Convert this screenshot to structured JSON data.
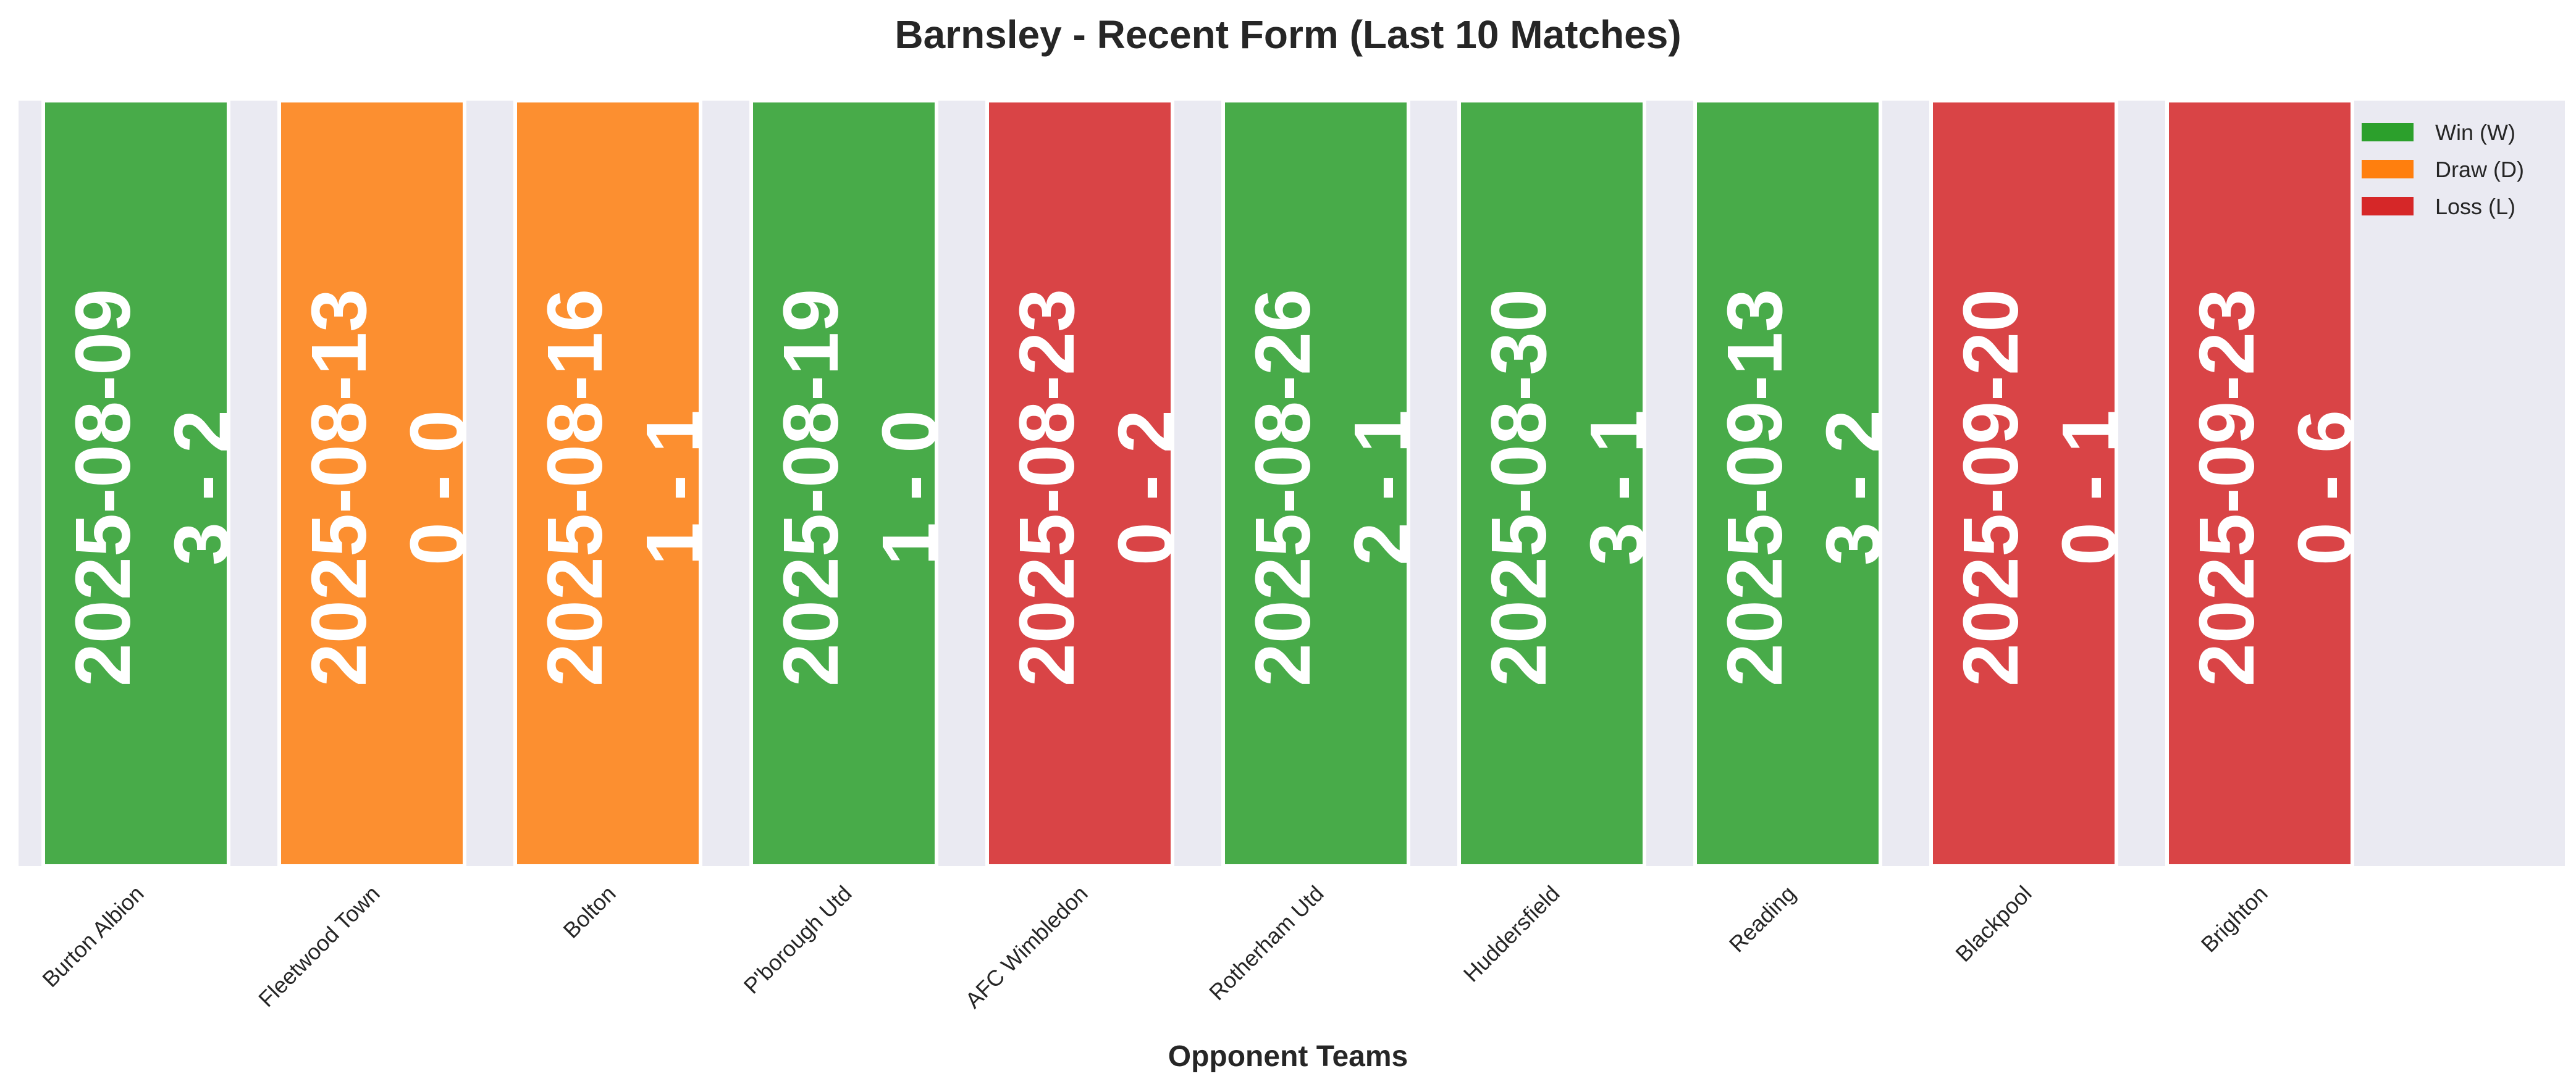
{
  "chart_data": {
    "type": "bar",
    "title": "Barnsley - Recent Form (Last 10 Matches)",
    "xlabel": "Opponent Teams",
    "ylabel": "",
    "ylim": [
      0,
      1
    ],
    "grid": false,
    "legend_position": "top-right",
    "categories": [
      "Burton Albion",
      "Fleetwood Town",
      "Bolton",
      "P'borough Utd",
      "AFC Wimbledon",
      "Rotherham Utd",
      "Huddersfield",
      "Reading",
      "Blackpool",
      "Brighton"
    ],
    "values": [
      1,
      1,
      1,
      1,
      1,
      1,
      1,
      1,
      1,
      1
    ],
    "dates": [
      "2025-08-09",
      "2025-08-13",
      "2025-08-16",
      "2025-08-19",
      "2025-08-23",
      "2025-08-26",
      "2025-08-30",
      "2025-09-13",
      "2025-09-20",
      "2025-09-23"
    ],
    "scores": [
      "3 - 2",
      "0 - 0",
      "1 - 1",
      "1 - 0",
      "0 - 2",
      "2 - 1",
      "3 - 1",
      "3 - 2",
      "0 - 1",
      "0 - 6"
    ],
    "results": [
      "W",
      "D",
      "D",
      "W",
      "L",
      "W",
      "W",
      "W",
      "L",
      "L"
    ],
    "legend": [
      {
        "key": "W",
        "label": "Win (W)",
        "color": "#2ca02c"
      },
      {
        "key": "D",
        "label": "Draw (D)",
        "color": "#ff7f0e"
      },
      {
        "key": "L",
        "label": "Loss (L)",
        "color": "#d62728"
      }
    ],
    "colors": {
      "W": "#2ca02c",
      "D": "#ff7f0e",
      "L": "#d62728",
      "plot_background": "#eaeaf2"
    }
  }
}
